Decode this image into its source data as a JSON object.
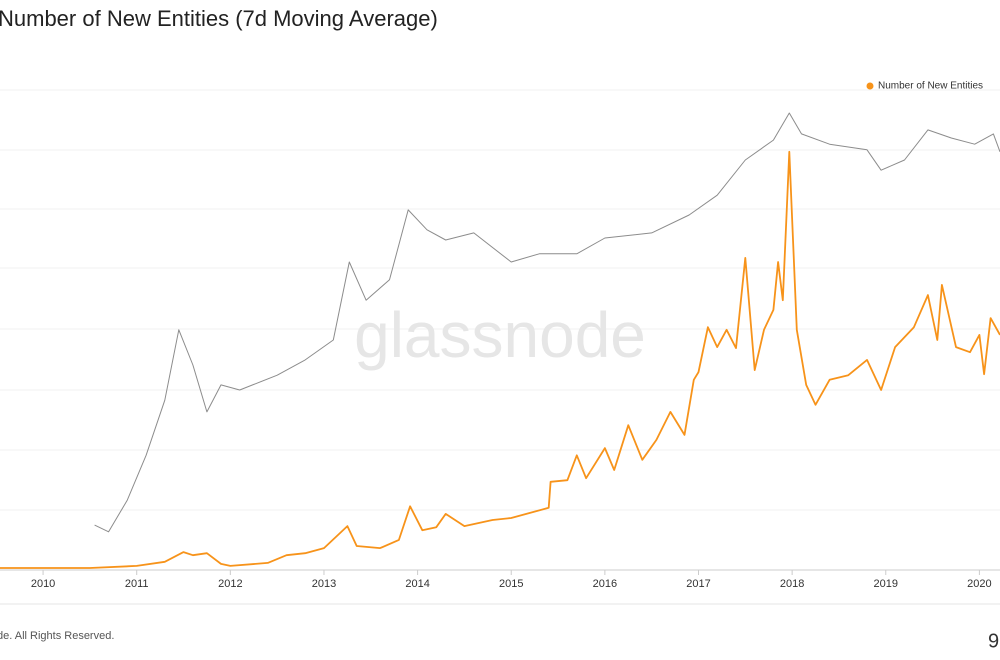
{
  "chart_data": {
    "type": "line",
    "title": "Number of New Entities (7d Moving Average)",
    "watermark": "glassnode",
    "footer": "de. All Rights Reserved.",
    "logo_text": "9",
    "xlim": [
      2009.54,
      2020.22
    ],
    "xticks": [
      2010,
      2011,
      2012,
      2013,
      2014,
      2015,
      2016,
      2017,
      2018,
      2019,
      2020
    ],
    "ylim": [
      0,
      100
    ],
    "legend": "top-right",
    "series": [
      {
        "name": "Number of New Entities",
        "color": "#f7931a",
        "legend": true,
        "x": [
          2009.54,
          2010.5,
          2011.0,
          2011.3,
          2011.5,
          2011.6,
          2011.75,
          2011.9,
          2012.0,
          2012.4,
          2012.6,
          2012.8,
          2013.0,
          2013.25,
          2013.35,
          2013.6,
          2013.8,
          2013.92,
          2014.05,
          2014.2,
          2014.3,
          2014.5,
          2014.8,
          2015.0,
          2015.2,
          2015.4,
          2015.42,
          2015.6,
          2015.7,
          2015.8,
          2016.0,
          2016.1,
          2016.25,
          2016.4,
          2016.55,
          2016.7,
          2016.85,
          2016.95,
          2017.0,
          2017.1,
          2017.2,
          2017.3,
          2017.4,
          2017.5,
          2017.6,
          2017.7,
          2017.8,
          2017.85,
          2017.9,
          2017.97,
          2018.05,
          2018.15,
          2018.25,
          2018.4,
          2018.6,
          2018.8,
          2018.95,
          2019.1,
          2019.3,
          2019.45,
          2019.55,
          2019.6,
          2019.75,
          2019.9,
          2020.0,
          2020.05,
          2020.12,
          2020.22
        ],
        "values": [
          0.4,
          0.4,
          0.8,
          1.6,
          3.5,
          2.9,
          3.3,
          1.2,
          0.8,
          1.4,
          2.9,
          3.3,
          4.3,
          8.6,
          4.7,
          4.3,
          5.9,
          12.5,
          7.8,
          8.4,
          11.0,
          8.6,
          9.8,
          10.2,
          11.2,
          12.2,
          17.3,
          17.6,
          22.5,
          18.0,
          23.9,
          19.6,
          28.4,
          21.6,
          25.5,
          31.0,
          26.5,
          37.3,
          38.8,
          47.6,
          43.7,
          47.1,
          43.5,
          61.2,
          39.2,
          47.1,
          51.0,
          60.4,
          52.9,
          82.0,
          47.1,
          36.3,
          32.4,
          37.3,
          38.2,
          41.2,
          35.3,
          43.7,
          47.6,
          53.9,
          45.1,
          55.9,
          43.7,
          42.7,
          46.1,
          38.4,
          49.4,
          46.1
        ]
      },
      {
        "color": "#8c8c8c",
        "legend": false,
        "x": [
          2010.55,
          2010.7,
          2010.9,
          2011.1,
          2011.3,
          2011.45,
          2011.6,
          2011.75,
          2011.9,
          2012.1,
          2012.5,
          2012.8,
          2013.1,
          2013.27,
          2013.45,
          2013.7,
          2013.9,
          2014.1,
          2014.3,
          2014.6,
          2015.0,
          2015.3,
          2015.7,
          2016.0,
          2016.5,
          2016.9,
          2017.2,
          2017.5,
          2017.8,
          2017.97,
          2018.1,
          2018.4,
          2018.8,
          2018.95,
          2019.2,
          2019.45,
          2019.7,
          2019.95,
          2020.15,
          2020.22
        ],
        "values": [
          8.8,
          7.5,
          13.7,
          22.5,
          33.3,
          47.1,
          40.2,
          31.0,
          36.3,
          35.3,
          38.2,
          41.2,
          45.1,
          60.4,
          52.9,
          56.9,
          70.6,
          66.7,
          64.7,
          66.1,
          60.4,
          62.0,
          62.0,
          65.1,
          66.1,
          69.6,
          73.5,
          80.4,
          84.3,
          89.6,
          85.5,
          83.5,
          82.4,
          78.4,
          80.4,
          86.3,
          84.7,
          83.5,
          85.5,
          82.0
        ]
      }
    ]
  }
}
